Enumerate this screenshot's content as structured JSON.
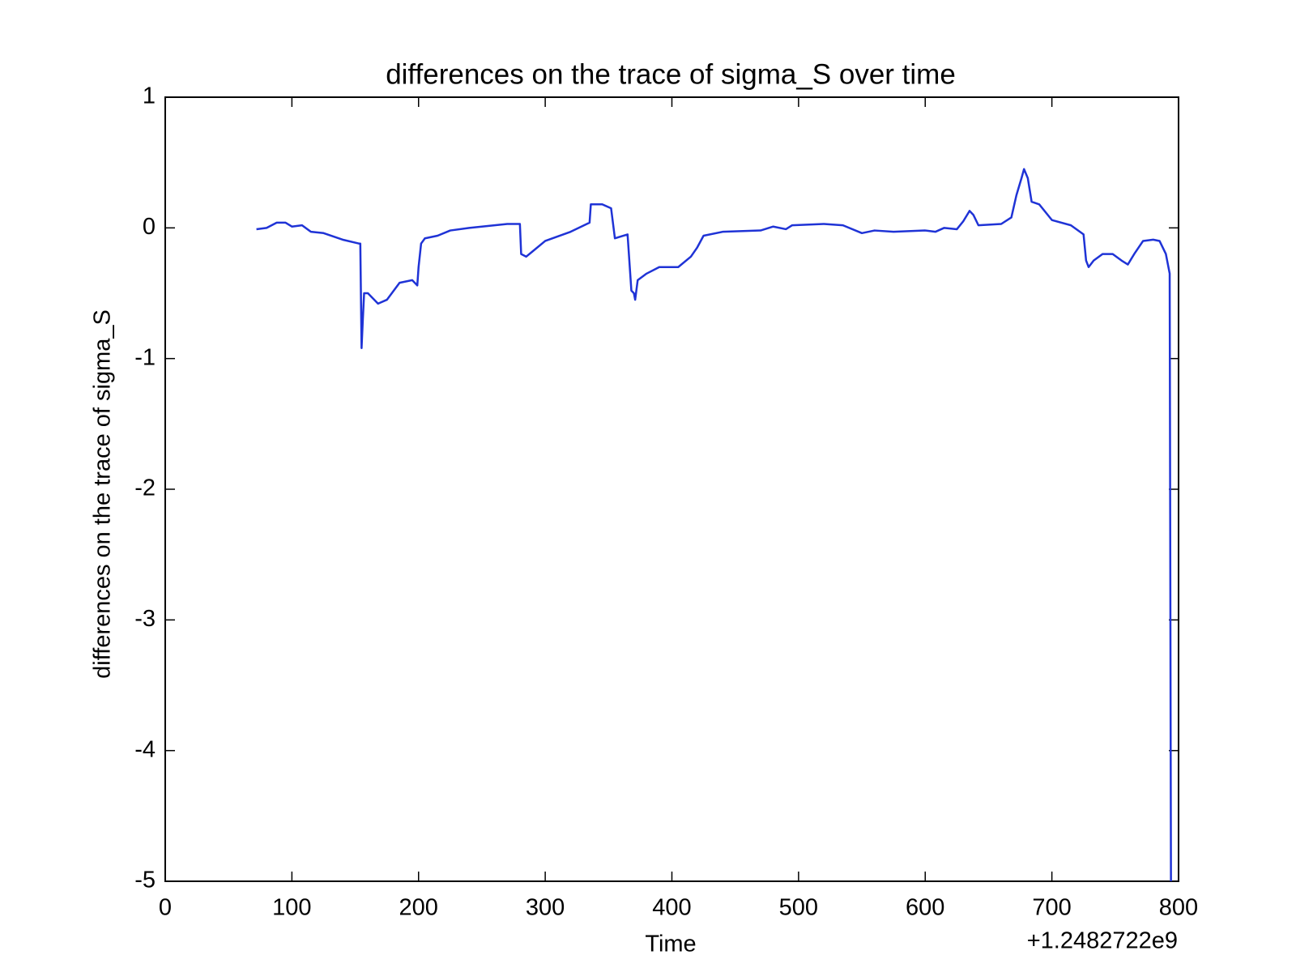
{
  "chart_data": {
    "type": "line",
    "title": "differences on the trace of sigma_S over time",
    "x_label": "Time",
    "y_label": "differences on the trace of sigma_S",
    "x_offset_label": "+1.2482722e9",
    "color": "#1f33d6",
    "x": [
      72,
      80,
      88,
      95,
      100,
      108,
      115,
      125,
      140,
      153,
      154,
      155,
      156,
      157,
      160,
      168,
      175,
      185,
      195,
      199,
      200,
      202,
      205,
      215,
      225,
      240,
      260,
      270,
      280,
      281,
      285,
      290,
      300,
      320,
      335,
      336,
      345,
      352,
      355,
      365,
      368,
      370,
      371,
      373,
      380,
      390,
      405,
      415,
      420,
      425,
      440,
      470,
      480,
      490,
      495,
      520,
      535,
      550,
      560,
      575,
      600,
      608,
      615,
      625,
      630,
      635,
      638,
      642,
      660,
      668,
      672,
      676,
      678,
      681,
      684,
      690,
      700,
      715,
      725,
      727,
      729,
      733,
      740,
      748,
      755,
      760,
      765,
      772,
      780,
      785,
      790,
      793,
      794
    ],
    "values": [
      -0.01,
      0,
      0.04,
      0.04,
      0.01,
      0.02,
      -0.03,
      -0.04,
      -0.09,
      -0.12,
      -0.12,
      -0.92,
      -0.7,
      -0.5,
      -0.5,
      -0.58,
      -0.55,
      -0.42,
      -0.4,
      -0.44,
      -0.3,
      -0.12,
      -0.08,
      -0.06,
      -0.02,
      0,
      0.02,
      0.03,
      0.03,
      -0.2,
      -0.22,
      -0.18,
      -0.1,
      -0.03,
      0.04,
      0.18,
      0.18,
      0.15,
      -0.08,
      -0.05,
      -0.48,
      -0.5,
      -0.55,
      -0.4,
      -0.35,
      -0.3,
      -0.3,
      -0.22,
      -0.15,
      -0.06,
      -0.03,
      -0.02,
      0.01,
      -0.01,
      0.02,
      0.03,
      0.02,
      -0.04,
      -0.02,
      -0.03,
      -0.02,
      -0.03,
      0,
      -0.01,
      0.05,
      0.13,
      0.1,
      0.02,
      0.03,
      0.08,
      0.25,
      0.38,
      0.45,
      0.38,
      0.2,
      0.18,
      0.06,
      0.02,
      -0.05,
      -0.25,
      -0.3,
      -0.25,
      -0.2,
      -0.2,
      -0.25,
      -0.28,
      -0.2,
      -0.1,
      -0.09,
      -0.1,
      -0.2,
      -0.35,
      -5
    ],
    "xlim": [
      0,
      800
    ],
    "xticks": [
      0,
      100,
      200,
      300,
      400,
      500,
      600,
      700,
      800
    ],
    "ylim": [
      -5,
      1
    ],
    "yticks": [
      -5,
      -4,
      -3,
      -2,
      -1,
      0,
      1
    ]
  }
}
